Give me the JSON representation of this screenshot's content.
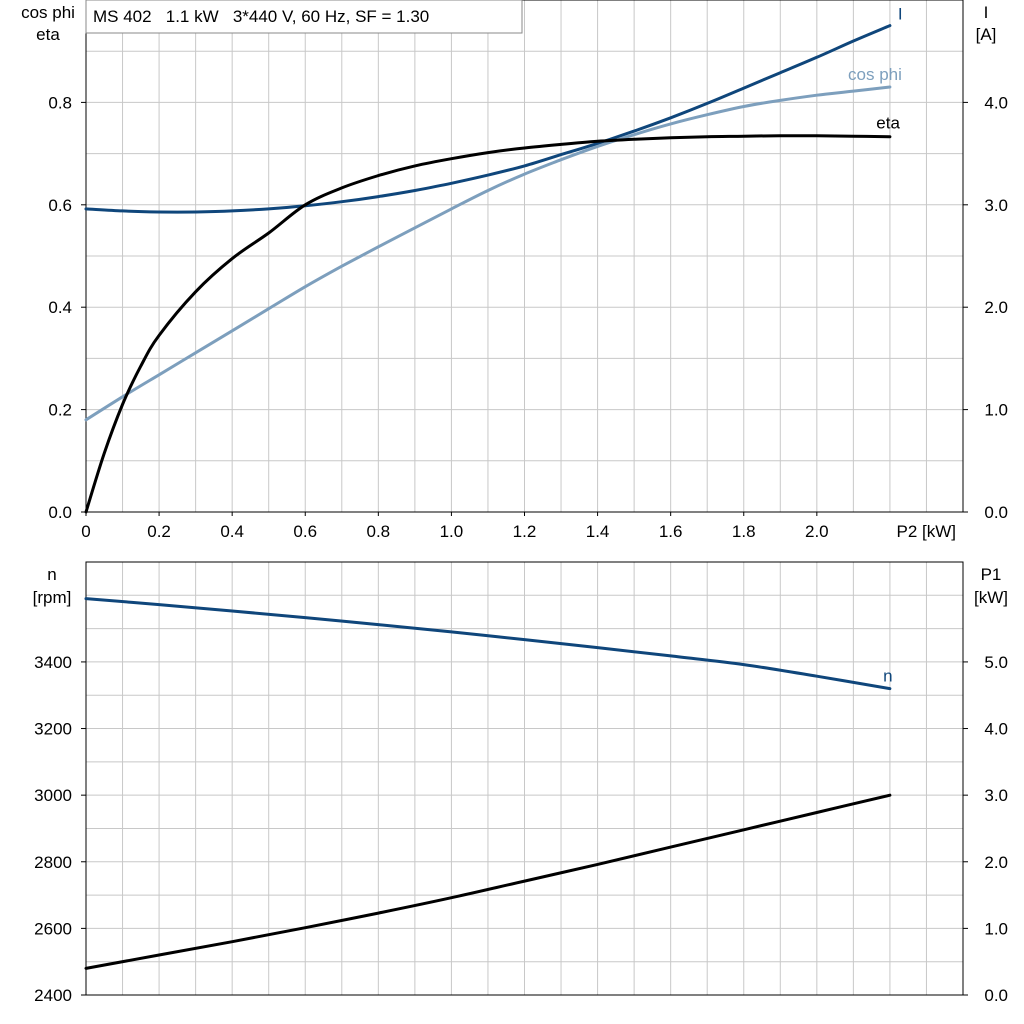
{
  "colors": {
    "grid": "#c8c8c8",
    "axis": "#000000",
    "dark_blue": "#0f467b",
    "light_blue": "#7d9fbd",
    "black": "#000000",
    "text": "#000000"
  },
  "chart_data": [
    {
      "type": "line",
      "title": "MS 402   1.1 kW   3*440 V, 60 Hz, SF = 1.30",
      "x_axis": {
        "label": "P2 [kW]",
        "ticks": [
          0,
          0.2,
          0.4,
          0.6,
          0.8,
          1.0,
          1.2,
          1.4,
          1.6,
          1.8,
          2.0
        ],
        "tick_labels": [
          "0",
          "0.2",
          "0.4",
          "0.6",
          "0.8",
          "1.0",
          "1.2",
          "1.4",
          "1.6",
          "1.8",
          "2.0"
        ],
        "range": [
          0,
          2.4
        ],
        "grid_step": 0.1
      },
      "y_left": {
        "label_lines": [
          "cos phi",
          "eta"
        ],
        "range": [
          0,
          1.0
        ],
        "ticks": [
          0,
          0.2,
          0.4,
          0.6,
          0.8
        ],
        "tick_labels": [
          "0.0",
          "0.2",
          "0.4",
          "0.6",
          "0.8"
        ],
        "grid_step": 0.1
      },
      "y_right": {
        "label_lines": [
          "I",
          "[A]"
        ],
        "range": [
          0,
          5.0
        ],
        "ticks": [
          0,
          1,
          2,
          3,
          4
        ],
        "tick_labels": [
          "0.0",
          "1.0",
          "2.0",
          "3.0",
          "4.0"
        ]
      },
      "grid": true,
      "series": [
        {
          "name": "I",
          "axis": "right",
          "color_key": "dark_blue",
          "x": [
            0,
            0.1,
            0.2,
            0.3,
            0.4,
            0.5,
            0.6,
            0.7,
            0.8,
            0.9,
            1.0,
            1.1,
            1.2,
            1.3,
            1.4,
            1.5,
            1.6,
            1.7,
            1.8,
            1.9,
            2.0,
            2.1,
            2.2
          ],
          "y": [
            2.96,
            2.94,
            2.93,
            2.93,
            2.94,
            2.96,
            2.99,
            3.03,
            3.08,
            3.14,
            3.21,
            3.29,
            3.38,
            3.49,
            3.6,
            3.72,
            3.85,
            3.99,
            4.14,
            4.29,
            4.44,
            4.6,
            4.75
          ],
          "label": "I"
        },
        {
          "name": "cos phi",
          "axis": "left",
          "color_key": "light_blue",
          "x": [
            0,
            0.1,
            0.2,
            0.3,
            0.4,
            0.5,
            0.6,
            0.7,
            0.8,
            0.9,
            1.0,
            1.1,
            1.2,
            1.3,
            1.4,
            1.5,
            1.6,
            1.7,
            1.8,
            1.9,
            2.0,
            2.1,
            2.2
          ],
          "y": [
            0.18,
            0.225,
            0.268,
            0.311,
            0.354,
            0.397,
            0.44,
            0.48,
            0.518,
            0.555,
            0.592,
            0.628,
            0.66,
            0.688,
            0.714,
            0.737,
            0.758,
            0.776,
            0.792,
            0.804,
            0.814,
            0.822,
            0.83
          ],
          "label": "cos phi"
        },
        {
          "name": "eta",
          "axis": "left",
          "color_key": "black",
          "x": [
            0,
            0.05,
            0.1,
            0.15,
            0.2,
            0.3,
            0.4,
            0.5,
            0.6,
            0.7,
            0.8,
            0.9,
            1.0,
            1.1,
            1.2,
            1.3,
            1.4,
            1.5,
            1.6,
            1.7,
            1.8,
            1.9,
            2.0,
            2.1,
            2.2
          ],
          "y": [
            0.0,
            0.115,
            0.21,
            0.285,
            0.345,
            0.43,
            0.495,
            0.545,
            0.6,
            0.633,
            0.657,
            0.676,
            0.69,
            0.702,
            0.711,
            0.718,
            0.724,
            0.728,
            0.731,
            0.733,
            0.734,
            0.735,
            0.735,
            0.734,
            0.733
          ],
          "label": "eta"
        }
      ]
    },
    {
      "type": "line",
      "x_axis": {
        "range": [
          0,
          2.4
        ],
        "grid_step": 0.1
      },
      "y_left": {
        "label_lines": [
          "n",
          "[rpm]"
        ],
        "range": [
          2400,
          3700
        ],
        "ticks": [
          2400,
          2600,
          2800,
          3000,
          3200,
          3400
        ],
        "tick_labels": [
          "2400",
          "2600",
          "2800",
          "3000",
          "3200",
          "3400"
        ],
        "grid_step": 100
      },
      "y_right": {
        "label_lines": [
          "P1",
          "[kW]"
        ],
        "range": [
          0,
          6.5
        ],
        "ticks": [
          0,
          1,
          2,
          3,
          4,
          5
        ],
        "tick_labels": [
          "0.0",
          "1.0",
          "2.0",
          "3.0",
          "4.0",
          "5.0"
        ]
      },
      "grid": true,
      "series": [
        {
          "name": "n",
          "axis": "left",
          "color_key": "dark_blue",
          "x": [
            0,
            0.2,
            0.4,
            0.6,
            0.8,
            1.0,
            1.2,
            1.4,
            1.6,
            1.8,
            2.0,
            2.2
          ],
          "y": [
            3590,
            3572,
            3553,
            3533,
            3512,
            3490,
            3467,
            3443,
            3418,
            3392,
            3357,
            3320
          ],
          "label": "n"
        },
        {
          "name": "P1",
          "axis": "right",
          "color_key": "black",
          "x": [
            0,
            0.2,
            0.4,
            0.6,
            0.8,
            1.0,
            1.2,
            1.4,
            1.6,
            1.8,
            2.0,
            2.2
          ],
          "y": [
            0.4,
            0.6,
            0.8,
            1.01,
            1.23,
            1.46,
            1.71,
            1.96,
            2.22,
            2.48,
            2.74,
            3.0
          ]
        }
      ]
    }
  ]
}
